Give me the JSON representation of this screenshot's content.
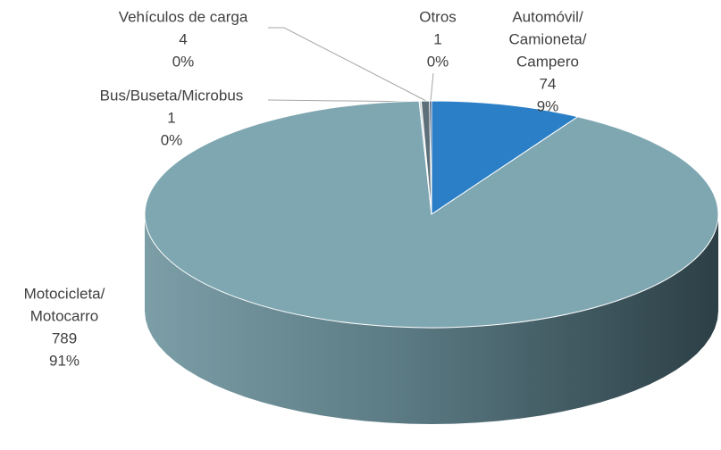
{
  "chart_data": {
    "type": "pie3d",
    "categories": [
      [
        "Automóvil/",
        "Camioneta/",
        "Campero"
      ],
      [
        "Motocicleta/",
        "Motocarro"
      ],
      [
        "Bus/Buseta/Microbus"
      ],
      [
        "Vehículos de carga"
      ],
      [
        "Otros"
      ]
    ],
    "values": [
      74,
      789,
      1,
      4,
      1
    ],
    "percent_labels": [
      "9%",
      "91%",
      "0%",
      "0%",
      "0%"
    ],
    "colors": [
      "#2a7fc6",
      "#7fa7b1",
      "#c5d3d8",
      "#5d6f78",
      "#1d3a63"
    ]
  }
}
